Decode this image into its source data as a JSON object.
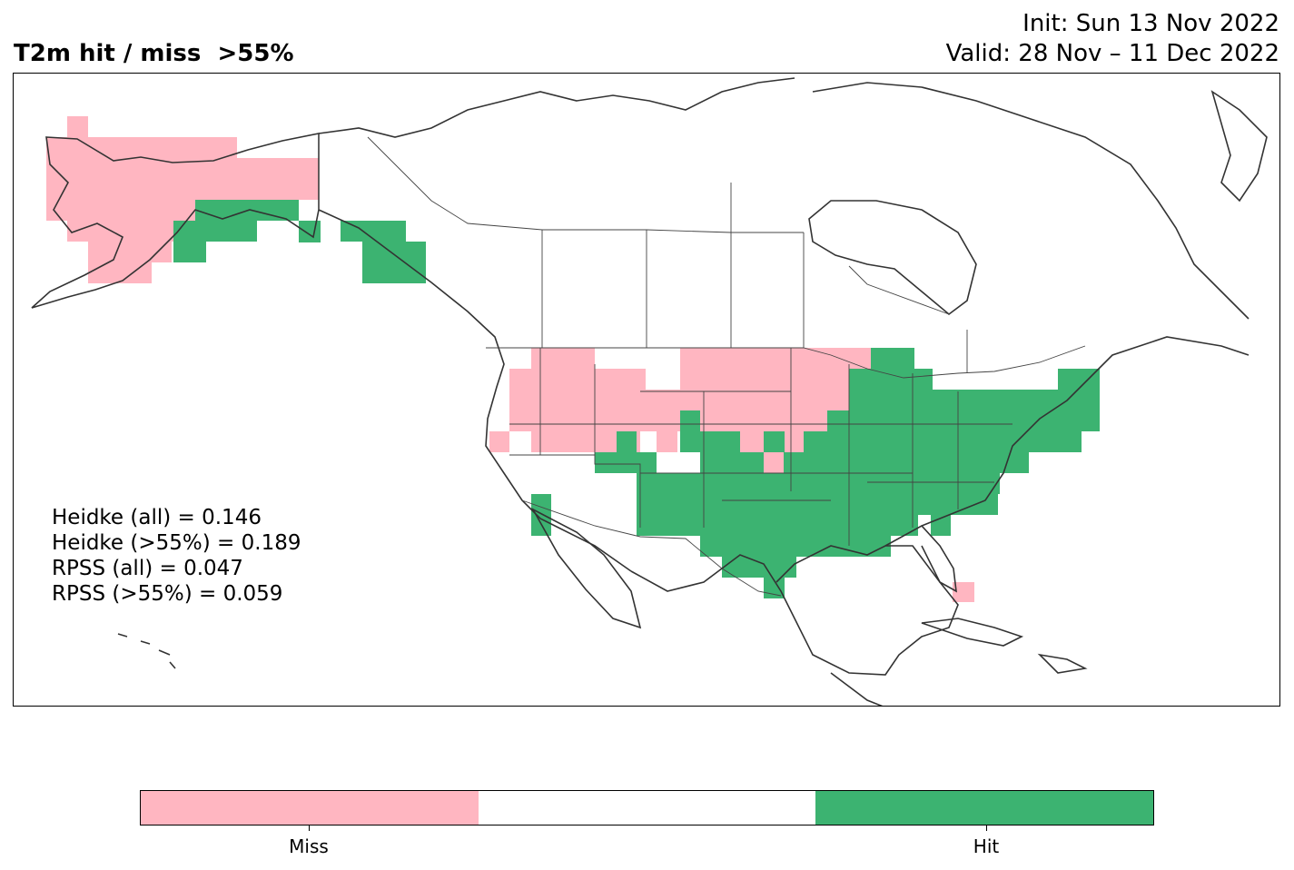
{
  "header": {
    "title": "T2m hit / miss  >55%",
    "init_line": "Init: Sun 13 Nov 2022",
    "valid_line": "Valid: 28 Nov – 11 Dec 2022"
  },
  "scores": {
    "heidke_all": "Heidke (all) = 0.146",
    "heidke_55": "Heidke (>55%) = 0.189",
    "rpss_all": "RPSS (all) = 0.047",
    "rpss_55": "RPSS (>55%) = 0.059"
  },
  "legend": {
    "miss_label": "Miss",
    "hit_label": "Hit",
    "colors": {
      "miss": "#ffb6c1",
      "neutral": "#ffffff",
      "hit": "#3cb371"
    }
  },
  "map": {
    "region": "North America",
    "miss_regions": [
      "Alaska interior",
      "Pacific Northwest",
      "Northern Plains",
      "Upper Midwest",
      "South Florida"
    ],
    "hit_regions": [
      "Southern Alaska coast",
      "Alaska panhandle",
      "Southern Plains",
      "Midwest",
      "Southeast",
      "Northeast"
    ]
  }
}
